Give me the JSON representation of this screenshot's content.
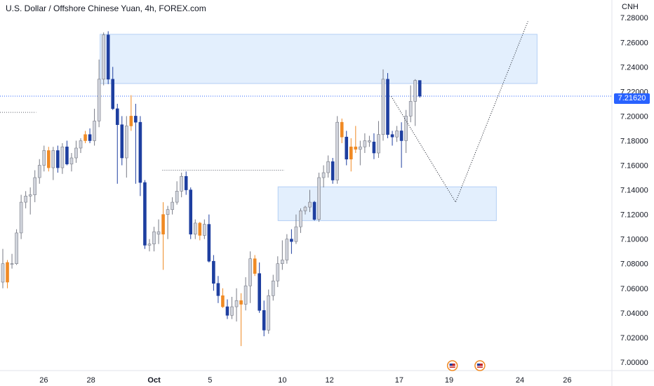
{
  "header": {
    "title": "U.S. Dollar / Offshore Chinese Yuan, 4h, FOREX.com",
    "currency": "CNH"
  },
  "current_price_label": "7.21620",
  "colors": {
    "bull_candle": "#d1d4dc",
    "bull_border": "#787b86",
    "bear_candle": "#1e3fa0",
    "highlight_candle": "#f08a24",
    "zone_fill": "#e3effd",
    "zone_border": "#b4cff5",
    "price_tag": "#2962ff"
  },
  "chart_data": {
    "type": "candlestick",
    "title": "U.S. Dollar / Offshore Chinese Yuan, 4h, FOREX.com",
    "unit": "CNH",
    "ylim": [
      6.9931,
      7.2944
    ],
    "yticks": [
      "7.28000",
      "7.26000",
      "7.24000",
      "7.22000",
      "7.20000",
      "7.18000",
      "7.16000",
      "7.14000",
      "7.12000",
      "7.10000",
      "7.08000",
      "7.06000",
      "7.04000",
      "7.02000",
      "7.00000"
    ],
    "xticks": [
      {
        "label": "26",
        "bold": false,
        "frac": 0.0716
      },
      {
        "label": "28",
        "bold": false,
        "frac": 0.1486
      },
      {
        "label": "Oct",
        "bold": true,
        "frac": 0.2518
      },
      {
        "label": "5",
        "bold": false,
        "frac": 0.3433
      },
      {
        "label": "10",
        "bold": false,
        "frac": 0.4614
      },
      {
        "label": "12",
        "bold": false,
        "frac": 0.5386
      },
      {
        "label": "17",
        "bold": false,
        "frac": 0.6524
      },
      {
        "label": "19",
        "bold": false,
        "frac": 0.7339
      },
      {
        "label": "24",
        "bold": false,
        "frac": 0.8498
      },
      {
        "label": "26",
        "bold": false,
        "frac": 0.927
      }
    ],
    "candles": [
      {
        "o": 7.08,
        "h": 7.092,
        "l": 7.06,
        "c": 7.065,
        "t": "bull"
      },
      {
        "o": 7.065,
        "h": 7.083,
        "l": 7.06,
        "c": 7.081,
        "t": "hl"
      },
      {
        "o": 7.08,
        "h": 7.088,
        "l": 7.076,
        "c": 7.08,
        "t": "bull"
      },
      {
        "o": 7.08,
        "h": 7.108,
        "l": 7.079,
        "c": 7.105,
        "t": "bull"
      },
      {
        "o": 7.105,
        "h": 7.136,
        "l": 7.1,
        "c": 7.13,
        "t": "bull"
      },
      {
        "o": 7.13,
        "h": 7.139,
        "l": 7.125,
        "c": 7.135,
        "t": "bull"
      },
      {
        "o": 7.135,
        "h": 7.142,
        "l": 7.12,
        "c": 7.136,
        "t": "bull"
      },
      {
        "o": 7.136,
        "h": 7.156,
        "l": 7.13,
        "c": 7.15,
        "t": "bull"
      },
      {
        "o": 7.15,
        "h": 7.165,
        "l": 7.145,
        "c": 7.16,
        "t": "bull"
      },
      {
        "o": 7.16,
        "h": 7.176,
        "l": 7.155,
        "c": 7.172,
        "t": "bull"
      },
      {
        "o": 7.172,
        "h": 7.175,
        "l": 7.155,
        "c": 7.158,
        "t": "hl"
      },
      {
        "o": 7.158,
        "h": 7.175,
        "l": 7.148,
        "c": 7.172,
        "t": "bull"
      },
      {
        "o": 7.172,
        "h": 7.176,
        "l": 7.154,
        "c": 7.158,
        "t": "bear"
      },
      {
        "o": 7.158,
        "h": 7.178,
        "l": 7.153,
        "c": 7.175,
        "t": "bull"
      },
      {
        "o": 7.175,
        "h": 7.18,
        "l": 7.16,
        "c": 7.161,
        "t": "bear"
      },
      {
        "o": 7.161,
        "h": 7.17,
        "l": 7.155,
        "c": 7.166,
        "t": "bull"
      },
      {
        "o": 7.166,
        "h": 7.18,
        "l": 7.162,
        "c": 7.174,
        "t": "bull"
      },
      {
        "o": 7.174,
        "h": 7.182,
        "l": 7.17,
        "c": 7.18,
        "t": "bull"
      },
      {
        "o": 7.18,
        "h": 7.188,
        "l": 7.178,
        "c": 7.185,
        "t": "hl"
      },
      {
        "o": 7.185,
        "h": 7.19,
        "l": 7.178,
        "c": 7.18,
        "t": "bear"
      },
      {
        "o": 7.18,
        "h": 7.206,
        "l": 7.176,
        "c": 7.196,
        "t": "bull"
      },
      {
        "o": 7.196,
        "h": 7.246,
        "l": 7.191,
        "c": 7.23,
        "t": "bull"
      },
      {
        "o": 7.23,
        "h": 7.268,
        "l": 7.225,
        "c": 7.266,
        "t": "bull"
      },
      {
        "o": 7.266,
        "h": 7.269,
        "l": 7.226,
        "c": 7.23,
        "t": "bear"
      },
      {
        "o": 7.23,
        "h": 7.24,
        "l": 7.205,
        "c": 7.206,
        "t": "bear"
      },
      {
        "o": 7.206,
        "h": 7.21,
        "l": 7.145,
        "c": 7.193,
        "t": "bear"
      },
      {
        "o": 7.193,
        "h": 7.2,
        "l": 7.16,
        "c": 7.166,
        "t": "bear"
      },
      {
        "o": 7.166,
        "h": 7.2,
        "l": 7.15,
        "c": 7.192,
        "t": "bull"
      },
      {
        "o": 7.192,
        "h": 7.217,
        "l": 7.188,
        "c": 7.2,
        "t": "hl"
      },
      {
        "o": 7.2,
        "h": 7.21,
        "l": 7.145,
        "c": 7.195,
        "t": "bear"
      },
      {
        "o": 7.195,
        "h": 7.2,
        "l": 7.135,
        "c": 7.146,
        "t": "bear"
      },
      {
        "o": 7.146,
        "h": 7.148,
        "l": 7.092,
        "c": 7.095,
        "t": "bear"
      },
      {
        "o": 7.095,
        "h": 7.1,
        "l": 7.09,
        "c": 7.096,
        "t": "bull"
      },
      {
        "o": 7.096,
        "h": 7.11,
        "l": 7.09,
        "c": 7.106,
        "t": "bull"
      },
      {
        "o": 7.106,
        "h": 7.116,
        "l": 7.096,
        "c": 7.104,
        "t": "bull"
      },
      {
        "o": 7.104,
        "h": 7.13,
        "l": 7.075,
        "c": 7.12,
        "t": "hl"
      },
      {
        "o": 7.12,
        "h": 7.127,
        "l": 7.1,
        "c": 7.124,
        "t": "bull"
      },
      {
        "o": 7.124,
        "h": 7.134,
        "l": 7.12,
        "c": 7.13,
        "t": "bull"
      },
      {
        "o": 7.13,
        "h": 7.147,
        "l": 7.128,
        "c": 7.139,
        "t": "bull"
      },
      {
        "o": 7.139,
        "h": 7.154,
        "l": 7.134,
        "c": 7.151,
        "t": "bull"
      },
      {
        "o": 7.151,
        "h": 7.155,
        "l": 7.136,
        "c": 7.14,
        "t": "bear"
      },
      {
        "o": 7.14,
        "h": 7.142,
        "l": 7.1,
        "c": 7.104,
        "t": "bear"
      },
      {
        "o": 7.104,
        "h": 7.116,
        "l": 7.1,
        "c": 7.113,
        "t": "bull"
      },
      {
        "o": 7.113,
        "h": 7.114,
        "l": 7.099,
        "c": 7.103,
        "t": "hl"
      },
      {
        "o": 7.103,
        "h": 7.116,
        "l": 7.1,
        "c": 7.112,
        "t": "bull"
      },
      {
        "o": 7.112,
        "h": 7.12,
        "l": 7.081,
        "c": 7.082,
        "t": "bear"
      },
      {
        "o": 7.082,
        "h": 7.087,
        "l": 7.058,
        "c": 7.064,
        "t": "bear"
      },
      {
        "o": 7.064,
        "h": 7.07,
        "l": 7.048,
        "c": 7.054,
        "t": "bear"
      },
      {
        "o": 7.054,
        "h": 7.06,
        "l": 7.044,
        "c": 7.045,
        "t": "hl"
      },
      {
        "o": 7.045,
        "h": 7.051,
        "l": 7.035,
        "c": 7.038,
        "t": "bear"
      },
      {
        "o": 7.038,
        "h": 7.053,
        "l": 7.035,
        "c": 7.045,
        "t": "bull"
      },
      {
        "o": 7.045,
        "h": 7.06,
        "l": 7.033,
        "c": 7.05,
        "t": "bull"
      },
      {
        "o": 7.05,
        "h": 7.056,
        "l": 7.013,
        "c": 7.047,
        "t": "hl"
      },
      {
        "o": 7.047,
        "h": 7.069,
        "l": 7.042,
        "c": 7.062,
        "t": "bull"
      },
      {
        "o": 7.062,
        "h": 7.09,
        "l": 7.048,
        "c": 7.084,
        "t": "bull"
      },
      {
        "o": 7.084,
        "h": 7.087,
        "l": 7.07,
        "c": 7.072,
        "t": "hl"
      },
      {
        "o": 7.072,
        "h": 7.081,
        "l": 7.04,
        "c": 7.042,
        "t": "bear"
      },
      {
        "o": 7.042,
        "h": 7.05,
        "l": 7.021,
        "c": 7.026,
        "t": "bear"
      },
      {
        "o": 7.026,
        "h": 7.059,
        "l": 7.023,
        "c": 7.054,
        "t": "bull"
      },
      {
        "o": 7.054,
        "h": 7.071,
        "l": 7.05,
        "c": 7.066,
        "t": "bull"
      },
      {
        "o": 7.066,
        "h": 7.086,
        "l": 7.061,
        "c": 7.08,
        "t": "bull"
      },
      {
        "o": 7.08,
        "h": 7.099,
        "l": 7.075,
        "c": 7.083,
        "t": "bull"
      },
      {
        "o": 7.083,
        "h": 7.104,
        "l": 7.08,
        "c": 7.1,
        "t": "bull"
      },
      {
        "o": 7.1,
        "h": 7.108,
        "l": 7.088,
        "c": 7.098,
        "t": "bear"
      },
      {
        "o": 7.098,
        "h": 7.12,
        "l": 7.096,
        "c": 7.11,
        "t": "bull"
      },
      {
        "o": 7.11,
        "h": 7.125,
        "l": 7.105,
        "c": 7.123,
        "t": "bull"
      },
      {
        "o": 7.123,
        "h": 7.127,
        "l": 7.12,
        "c": 7.126,
        "t": "bull"
      },
      {
        "o": 7.126,
        "h": 7.14,
        "l": 7.122,
        "c": 7.13,
        "t": "bull"
      },
      {
        "o": 7.13,
        "h": 7.131,
        "l": 7.115,
        "c": 7.116,
        "t": "bear"
      },
      {
        "o": 7.116,
        "h": 7.154,
        "l": 7.114,
        "c": 7.15,
        "t": "bull"
      },
      {
        "o": 7.15,
        "h": 7.16,
        "l": 7.142,
        "c": 7.154,
        "t": "bull"
      },
      {
        "o": 7.154,
        "h": 7.168,
        "l": 7.15,
        "c": 7.163,
        "t": "bull"
      },
      {
        "o": 7.163,
        "h": 7.166,
        "l": 7.145,
        "c": 7.148,
        "t": "bear"
      },
      {
        "o": 7.148,
        "h": 7.2,
        "l": 7.145,
        "c": 7.195,
        "t": "bull"
      },
      {
        "o": 7.195,
        "h": 7.198,
        "l": 7.178,
        "c": 7.183,
        "t": "hl"
      },
      {
        "o": 7.183,
        "h": 7.188,
        "l": 7.16,
        "c": 7.165,
        "t": "bear"
      },
      {
        "o": 7.165,
        "h": 7.182,
        "l": 7.155,
        "c": 7.175,
        "t": "hl"
      },
      {
        "o": 7.175,
        "h": 7.192,
        "l": 7.17,
        "c": 7.173,
        "t": "hl"
      },
      {
        "o": 7.173,
        "h": 7.18,
        "l": 7.16,
        "c": 7.175,
        "t": "bull"
      },
      {
        "o": 7.175,
        "h": 7.186,
        "l": 7.17,
        "c": 7.18,
        "t": "bull"
      },
      {
        "o": 7.18,
        "h": 7.184,
        "l": 7.175,
        "c": 7.179,
        "t": "bull"
      },
      {
        "o": 7.179,
        "h": 7.186,
        "l": 7.165,
        "c": 7.17,
        "t": "bear"
      },
      {
        "o": 7.17,
        "h": 7.196,
        "l": 7.166,
        "c": 7.185,
        "t": "bull"
      },
      {
        "o": 7.185,
        "h": 7.238,
        "l": 7.18,
        "c": 7.23,
        "t": "bull"
      },
      {
        "o": 7.23,
        "h": 7.235,
        "l": 7.182,
        "c": 7.185,
        "t": "bear"
      },
      {
        "o": 7.185,
        "h": 7.188,
        "l": 7.176,
        "c": 7.183,
        "t": "bear"
      },
      {
        "o": 7.183,
        "h": 7.192,
        "l": 7.179,
        "c": 7.188,
        "t": "bull"
      },
      {
        "o": 7.188,
        "h": 7.195,
        "l": 7.158,
        "c": 7.18,
        "t": "bear"
      },
      {
        "o": 7.18,
        "h": 7.205,
        "l": 7.17,
        "c": 7.2,
        "t": "bull"
      },
      {
        "o": 7.2,
        "h": 7.225,
        "l": 7.195,
        "c": 7.212,
        "t": "bull"
      },
      {
        "o": 7.212,
        "h": 7.23,
        "l": 7.192,
        "c": 7.229,
        "t": "bull"
      },
      {
        "o": 7.229,
        "h": 7.229,
        "l": 7.215,
        "c": 7.2162,
        "t": "bear"
      }
    ],
    "current_price": 7.2162,
    "zones": [
      {
        "x0": 0.1636,
        "x1": 0.8777,
        "y0": 7.2665,
        "y1": 7.2265
      },
      {
        "x0": 0.4544,
        "x1": 0.8112,
        "y0": 7.1425,
        "y1": 7.115
      }
    ],
    "guide_lines": [
      {
        "type": "dotted",
        "x0": 0.0,
        "x1": 0.059,
        "y0": 7.203,
        "y1": 7.203
      },
      {
        "type": "dotted",
        "x0": 0.2654,
        "x1": 0.4651,
        "y0": 7.156,
        "y1": 7.156
      }
    ],
    "projection_path": [
      {
        "xf": 0.6395,
        "y": 7.216
      },
      {
        "xf": 0.7446,
        "y": 7.13
      },
      {
        "xf": 0.8627,
        "y": 7.277
      }
    ],
    "event_icons": [
      {
        "xf": 0.7393
      },
      {
        "xf": 0.7843
      }
    ]
  }
}
